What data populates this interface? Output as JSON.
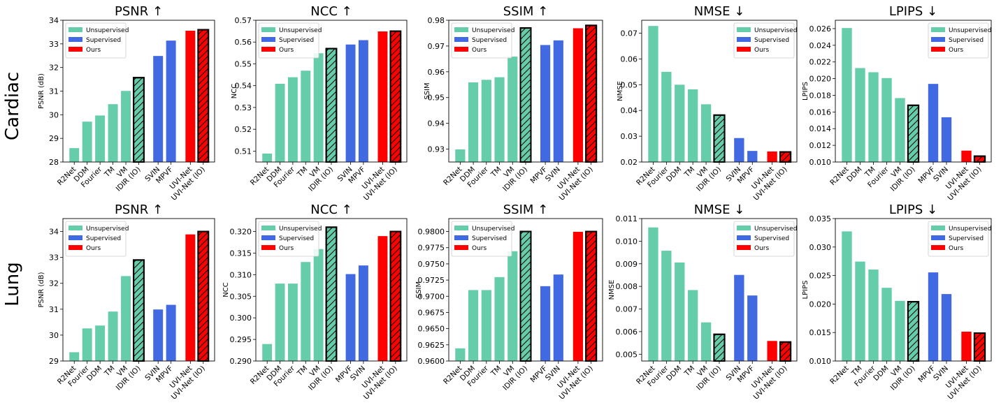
{
  "row_labels": [
    "Cardiac",
    "Lung"
  ],
  "legend": [
    {
      "label": "Unsupervised",
      "color": "#66cdaa"
    },
    {
      "label": "Supervised",
      "color": "#4169e1"
    },
    {
      "label": "Ours",
      "color": "#ff0000"
    }
  ],
  "chart_data": [
    {
      "type": "bar",
      "row": "Cardiac",
      "title": "PSNR ↑",
      "ylabel": "PSNR (dB)",
      "ylim": [
        28,
        34
      ],
      "yticks": [
        "28",
        "29",
        "30",
        "31",
        "32",
        "33",
        "34"
      ],
      "ytick_values": [
        28,
        29,
        30,
        31,
        32,
        33,
        34
      ],
      "legend_position": "upper-left",
      "bars": [
        {
          "label": "R2Net",
          "value": 28.6,
          "group": "Unsupervised",
          "hatched": false
        },
        {
          "label": "DDM",
          "value": 29.72,
          "group": "Unsupervised",
          "hatched": false
        },
        {
          "label": "Fourier",
          "value": 29.98,
          "group": "Unsupervised",
          "hatched": false
        },
        {
          "label": "TM",
          "value": 30.46,
          "group": "Unsupervised",
          "hatched": false
        },
        {
          "label": "VM",
          "value": 31.02,
          "group": "Unsupervised",
          "hatched": false
        },
        {
          "label": "IDIR (IO)",
          "value": 31.57,
          "group": "Unsupervised",
          "hatched": true
        },
        {
          "label": "SVIN",
          "value": 32.5,
          "group": "Supervised",
          "hatched": false
        },
        {
          "label": "MPVF",
          "value": 33.15,
          "group": "Supervised",
          "hatched": false
        },
        {
          "label": "UVI-Net",
          "value": 33.57,
          "group": "Ours",
          "hatched": false
        },
        {
          "label": "UVI-Net (IO)",
          "value": 33.6,
          "group": "Ours",
          "hatched": true
        }
      ]
    },
    {
      "type": "bar",
      "row": "Cardiac",
      "title": "NCC ↑",
      "ylabel": "NCC",
      "ylim": [
        0.505,
        0.57
      ],
      "yticks": [
        "0.51",
        "0.52",
        "0.53",
        "0.54",
        "0.55",
        "0.56",
        "0.57"
      ],
      "ytick_values": [
        0.51,
        0.52,
        0.53,
        0.54,
        0.55,
        0.56,
        0.57
      ],
      "legend_position": "upper-left",
      "bars": [
        {
          "label": "R2Net",
          "value": 0.509,
          "group": "Unsupervised",
          "hatched": false
        },
        {
          "label": "DDM",
          "value": 0.541,
          "group": "Unsupervised",
          "hatched": false
        },
        {
          "label": "Fourier",
          "value": 0.544,
          "group": "Unsupervised",
          "hatched": false
        },
        {
          "label": "TM",
          "value": 0.547,
          "group": "Unsupervised",
          "hatched": false
        },
        {
          "label": "VM",
          "value": 0.555,
          "group": "Unsupervised",
          "hatched": false
        },
        {
          "label": "IDIR (IO)",
          "value": 0.557,
          "group": "Unsupervised",
          "hatched": true
        },
        {
          "label": "SVIN",
          "value": 0.559,
          "group": "Supervised",
          "hatched": false
        },
        {
          "label": "MPVF",
          "value": 0.561,
          "group": "Supervised",
          "hatched": false
        },
        {
          "label": "UVI-Net",
          "value": 0.565,
          "group": "Ours",
          "hatched": false
        },
        {
          "label": "UVI-Net (IO)",
          "value": 0.565,
          "group": "Ours",
          "hatched": true
        }
      ]
    },
    {
      "type": "bar",
      "row": "Cardiac",
      "title": "SSIM ↑",
      "ylabel": "SSIM",
      "ylim": [
        0.925,
        0.98
      ],
      "yticks": [
        "0.93",
        "0.94",
        "0.95",
        "0.96",
        "0.97",
        "0.98"
      ],
      "ytick_values": [
        0.93,
        0.94,
        0.95,
        0.96,
        0.97,
        0.98
      ],
      "legend_position": "upper-left",
      "bars": [
        {
          "label": "R2Net",
          "value": 0.93,
          "group": "Unsupervised",
          "hatched": false
        },
        {
          "label": "DDM",
          "value": 0.956,
          "group": "Unsupervised",
          "hatched": false
        },
        {
          "label": "Fourier",
          "value": 0.957,
          "group": "Unsupervised",
          "hatched": false
        },
        {
          "label": "TM",
          "value": 0.958,
          "group": "Unsupervised",
          "hatched": false
        },
        {
          "label": "VM",
          "value": 0.966,
          "group": "Unsupervised",
          "hatched": false
        },
        {
          "label": "IDIR (IO)",
          "value": 0.977,
          "group": "Unsupervised",
          "hatched": true
        },
        {
          "label": "MPVF",
          "value": 0.9705,
          "group": "Supervised",
          "hatched": false
        },
        {
          "label": "SVIN",
          "value": 0.9723,
          "group": "Supervised",
          "hatched": false
        },
        {
          "label": "UVI-Net",
          "value": 0.977,
          "group": "Ours",
          "hatched": false
        },
        {
          "label": "UVI-Net (IO)",
          "value": 0.978,
          "group": "Ours",
          "hatched": true
        }
      ]
    },
    {
      "type": "bar",
      "row": "Cardiac",
      "title": "NMSE ↓",
      "ylabel": "NMSE",
      "ylim": [
        0.02,
        0.075
      ],
      "yticks": [
        "0.02",
        "0.03",
        "0.04",
        "0.05",
        "0.06",
        "0.07"
      ],
      "ytick_values": [
        0.02,
        0.03,
        0.04,
        0.05,
        0.06,
        0.07
      ],
      "legend_position": "upper-right",
      "bars": [
        {
          "label": "R2Net",
          "value": 0.0729,
          "group": "Unsupervised",
          "hatched": false
        },
        {
          "label": "Fourier",
          "value": 0.0551,
          "group": "Unsupervised",
          "hatched": false
        },
        {
          "label": "DDM",
          "value": 0.0501,
          "group": "Unsupervised",
          "hatched": false
        },
        {
          "label": "TM",
          "value": 0.0483,
          "group": "Unsupervised",
          "hatched": false
        },
        {
          "label": "VM",
          "value": 0.0425,
          "group": "Unsupervised",
          "hatched": false
        },
        {
          "label": "IDIR (IO)",
          "value": 0.0382,
          "group": "Unsupervised",
          "hatched": true
        },
        {
          "label": "SVIN",
          "value": 0.0294,
          "group": "Supervised",
          "hatched": false
        },
        {
          "label": "MPVF",
          "value": 0.0244,
          "group": "Supervised",
          "hatched": false
        },
        {
          "label": "UVI-Net",
          "value": 0.0242,
          "group": "Ours",
          "hatched": false
        },
        {
          "label": "UVI-Net (IO)",
          "value": 0.0239,
          "group": "Ours",
          "hatched": true
        }
      ]
    },
    {
      "type": "bar",
      "row": "Cardiac",
      "title": "LPIPS ↓",
      "ylabel": "LPIPS",
      "ylim": [
        0.01,
        0.027
      ],
      "yticks": [
        "0.010",
        "0.012",
        "0.014",
        "0.016",
        "0.018",
        "0.020",
        "0.022",
        "0.024",
        "0.026"
      ],
      "ytick_values": [
        0.01,
        0.012,
        0.014,
        0.016,
        0.018,
        0.02,
        0.022,
        0.024,
        0.026
      ],
      "legend_position": "upper-right",
      "bars": [
        {
          "label": "R2Net",
          "value": 0.0261,
          "group": "Unsupervised",
          "hatched": false
        },
        {
          "label": "DDM",
          "value": 0.0213,
          "group": "Unsupervised",
          "hatched": false
        },
        {
          "label": "TM",
          "value": 0.0208,
          "group": "Unsupervised",
          "hatched": false
        },
        {
          "label": "Fourier",
          "value": 0.0201,
          "group": "Unsupervised",
          "hatched": false
        },
        {
          "label": "VM",
          "value": 0.0177,
          "group": "Unsupervised",
          "hatched": false
        },
        {
          "label": "IDIR (IO)",
          "value": 0.0168,
          "group": "Unsupervised",
          "hatched": true
        },
        {
          "label": "MPVF",
          "value": 0.0194,
          "group": "Supervised",
          "hatched": false
        },
        {
          "label": "SVIN",
          "value": 0.0154,
          "group": "Supervised",
          "hatched": false
        },
        {
          "label": "UVI-Net",
          "value": 0.0114,
          "group": "Ours",
          "hatched": false
        },
        {
          "label": "UVI-Net (IO)",
          "value": 0.0107,
          "group": "Ours",
          "hatched": true
        }
      ]
    },
    {
      "type": "bar",
      "row": "Lung",
      "title": "PSNR ↑",
      "ylabel": "PSNR (dB)",
      "ylim": [
        29,
        34.5
      ],
      "yticks": [
        "29",
        "30",
        "31",
        "32",
        "33",
        "34"
      ],
      "ytick_values": [
        29,
        30,
        31,
        32,
        33,
        34
      ],
      "legend_position": "upper-left",
      "bars": [
        {
          "label": "R2Net",
          "value": 29.35,
          "group": "Unsupervised",
          "hatched": false
        },
        {
          "label": "Fourier",
          "value": 30.27,
          "group": "Unsupervised",
          "hatched": false
        },
        {
          "label": "DDM",
          "value": 30.38,
          "group": "Unsupervised",
          "hatched": false
        },
        {
          "label": "TM",
          "value": 30.92,
          "group": "Unsupervised",
          "hatched": false
        },
        {
          "label": "VM",
          "value": 32.29,
          "group": "Unsupervised",
          "hatched": false
        },
        {
          "label": "IDIR (IO)",
          "value": 32.9,
          "group": "Unsupervised",
          "hatched": true
        },
        {
          "label": "SVIN",
          "value": 31.0,
          "group": "Supervised",
          "hatched": false
        },
        {
          "label": "MPVF",
          "value": 31.18,
          "group": "Supervised",
          "hatched": false
        },
        {
          "label": "UVI-Net",
          "value": 33.9,
          "group": "Ours",
          "hatched": false
        },
        {
          "label": "UVI-Net (IO)",
          "value": 34.0,
          "group": "Ours",
          "hatched": true
        }
      ]
    },
    {
      "type": "bar",
      "row": "Lung",
      "title": "NCC ↑",
      "ylabel": "NCC",
      "ylim": [
        0.29,
        0.323
      ],
      "yticks": [
        "0.290",
        "0.295",
        "0.300",
        "0.305",
        "0.310",
        "0.315",
        "0.320"
      ],
      "ytick_values": [
        0.29,
        0.295,
        0.3,
        0.305,
        0.31,
        0.315,
        0.32
      ],
      "legend_position": "upper-left",
      "bars": [
        {
          "label": "R2Net",
          "value": 0.294,
          "group": "Unsupervised",
          "hatched": false
        },
        {
          "label": "DDM",
          "value": 0.308,
          "group": "Unsupervised",
          "hatched": false
        },
        {
          "label": "Fourier",
          "value": 0.308,
          "group": "Unsupervised",
          "hatched": false
        },
        {
          "label": "TM",
          "value": 0.313,
          "group": "Unsupervised",
          "hatched": false
        },
        {
          "label": "VM",
          "value": 0.316,
          "group": "Unsupervised",
          "hatched": false
        },
        {
          "label": "IDIR (IO)",
          "value": 0.321,
          "group": "Unsupervised",
          "hatched": true
        },
        {
          "label": "MPVF",
          "value": 0.3102,
          "group": "Supervised",
          "hatched": false
        },
        {
          "label": "SVIN",
          "value": 0.3122,
          "group": "Supervised",
          "hatched": false
        },
        {
          "label": "UVI-Net",
          "value": 0.319,
          "group": "Ours",
          "hatched": false
        },
        {
          "label": "UVI-Net (IO)",
          "value": 0.32,
          "group": "Ours",
          "hatched": true
        }
      ]
    },
    {
      "type": "bar",
      "row": "Lung",
      "title": "SSIM ↑",
      "ylabel": "SSIM",
      "ylim": [
        0.96,
        0.982
      ],
      "yticks": [
        "0.9600",
        "0.9625",
        "0.9650",
        "0.9675",
        "0.9700",
        "0.9725",
        "0.9750",
        "0.9775",
        "0.9800"
      ],
      "ytick_values": [
        0.96,
        0.9625,
        0.965,
        0.9675,
        0.97,
        0.9725,
        0.975,
        0.9775,
        0.98
      ],
      "legend_position": "upper-left",
      "bars": [
        {
          "label": "R2Net",
          "value": 0.962,
          "group": "Unsupervised",
          "hatched": false
        },
        {
          "label": "DDM",
          "value": 0.971,
          "group": "Unsupervised",
          "hatched": false
        },
        {
          "label": "Fourier",
          "value": 0.971,
          "group": "Unsupervised",
          "hatched": false
        },
        {
          "label": "TM",
          "value": 0.973,
          "group": "Unsupervised",
          "hatched": false
        },
        {
          "label": "VM",
          "value": 0.977,
          "group": "Unsupervised",
          "hatched": false
        },
        {
          "label": "IDIR (IO)",
          "value": 0.98,
          "group": "Unsupervised",
          "hatched": true
        },
        {
          "label": "MPVF",
          "value": 0.9716,
          "group": "Supervised",
          "hatched": false
        },
        {
          "label": "SVIN",
          "value": 0.9734,
          "group": "Supervised",
          "hatched": false
        },
        {
          "label": "UVI-Net",
          "value": 0.98,
          "group": "Ours",
          "hatched": false
        },
        {
          "label": "UVI-Net (IO)",
          "value": 0.98,
          "group": "Ours",
          "hatched": true
        }
      ]
    },
    {
      "type": "bar",
      "row": "Lung",
      "title": "NMSE ↓",
      "ylabel": "NMSE",
      "ylim": [
        0.0047,
        0.011
      ],
      "yticks": [
        "0.005",
        "0.006",
        "0.007",
        "0.008",
        "0.009",
        "0.010",
        "0.011"
      ],
      "ytick_values": [
        0.005,
        0.006,
        0.007,
        0.008,
        0.009,
        0.01,
        0.011
      ],
      "legend_position": "upper-right",
      "bars": [
        {
          "label": "R2Net",
          "value": 0.01062,
          "group": "Unsupervised",
          "hatched": false
        },
        {
          "label": "Fourier",
          "value": 0.00959,
          "group": "Unsupervised",
          "hatched": false
        },
        {
          "label": "DDM",
          "value": 0.00907,
          "group": "Unsupervised",
          "hatched": false
        },
        {
          "label": "TM",
          "value": 0.00785,
          "group": "Unsupervised",
          "hatched": false
        },
        {
          "label": "VM",
          "value": 0.00642,
          "group": "Unsupervised",
          "hatched": false
        },
        {
          "label": "IDIR (IO)",
          "value": 0.00588,
          "group": "Unsupervised",
          "hatched": true
        },
        {
          "label": "SVIN",
          "value": 0.00852,
          "group": "Supervised",
          "hatched": false
        },
        {
          "label": "MPVF",
          "value": 0.00761,
          "group": "Supervised",
          "hatched": false
        },
        {
          "label": "UVI-Net",
          "value": 0.0056,
          "group": "Ours",
          "hatched": false
        },
        {
          "label": "UVI-Net (IO)",
          "value": 0.00554,
          "group": "Ours",
          "hatched": true
        }
      ]
    },
    {
      "type": "bar",
      "row": "Lung",
      "title": "LPIPS ↓",
      "ylabel": "LPIPS",
      "ylim": [
        0.01,
        0.035
      ],
      "yticks": [
        "0.010",
        "0.015",
        "0.020",
        "0.025",
        "0.030",
        "0.035"
      ],
      "ytick_values": [
        0.01,
        0.015,
        0.02,
        0.025,
        0.03,
        0.035
      ],
      "legend_position": "upper-right",
      "bars": [
        {
          "label": "R2Net",
          "value": 0.0328,
          "group": "Unsupervised",
          "hatched": false
        },
        {
          "label": "TM",
          "value": 0.0275,
          "group": "Unsupervised",
          "hatched": false
        },
        {
          "label": "Fourier",
          "value": 0.0261,
          "group": "Unsupervised",
          "hatched": false
        },
        {
          "label": "DDM",
          "value": 0.0229,
          "group": "Unsupervised",
          "hatched": false
        },
        {
          "label": "VM",
          "value": 0.0206,
          "group": "Unsupervised",
          "hatched": false
        },
        {
          "label": "IDIR (IO)",
          "value": 0.0204,
          "group": "Unsupervised",
          "hatched": true
        },
        {
          "label": "MPVF",
          "value": 0.0256,
          "group": "Supervised",
          "hatched": false
        },
        {
          "label": "SVIN",
          "value": 0.0218,
          "group": "Supervised",
          "hatched": false
        },
        {
          "label": "UVI-Net",
          "value": 0.0152,
          "group": "Ours",
          "hatched": false
        },
        {
          "label": "UVI-Net (IO)",
          "value": 0.0149,
          "group": "Ours",
          "hatched": true
        }
      ]
    }
  ]
}
